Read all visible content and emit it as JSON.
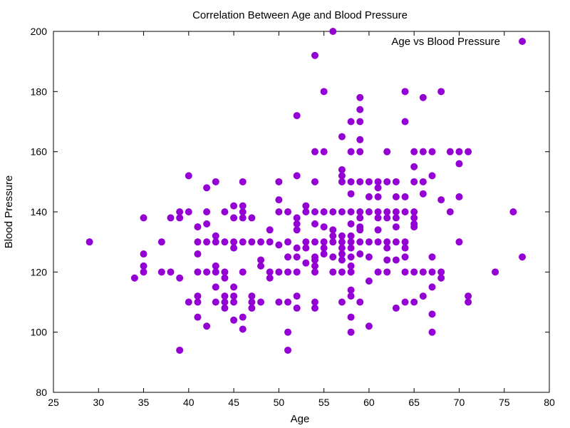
{
  "chart_data": {
    "type": "scatter",
    "title": "Correlation Between Age and Blood Pressure",
    "xlabel": "Age",
    "ylabel": "Blood Pressure",
    "xlim": [
      25,
      80
    ],
    "ylim": [
      80,
      200
    ],
    "xticks": [
      25,
      30,
      35,
      40,
      45,
      50,
      55,
      60,
      65,
      70,
      75,
      80
    ],
    "yticks": [
      80,
      100,
      120,
      140,
      160,
      180,
      200
    ],
    "grid": false,
    "legend_position": "top-right",
    "series": [
      {
        "name": "Age vs Blood Pressure",
        "color": "#9400d3",
        "points": [
          [
            29,
            130
          ],
          [
            34,
            118
          ],
          [
            35,
            138
          ],
          [
            35,
            126
          ],
          [
            35,
            122
          ],
          [
            35,
            120
          ],
          [
            37,
            130
          ],
          [
            37,
            120
          ],
          [
            38,
            138
          ],
          [
            38,
            120
          ],
          [
            39,
            140
          ],
          [
            39,
            138
          ],
          [
            39,
            118
          ],
          [
            39,
            94
          ],
          [
            40,
            152
          ],
          [
            40,
            140
          ],
          [
            40,
            110
          ],
          [
            41,
            135
          ],
          [
            41,
            130
          ],
          [
            41,
            126
          ],
          [
            41,
            120
          ],
          [
            41,
            112
          ],
          [
            41,
            110
          ],
          [
            41,
            105
          ],
          [
            42,
            148
          ],
          [
            42,
            140
          ],
          [
            42,
            136
          ],
          [
            42,
            130
          ],
          [
            42,
            120
          ],
          [
            42,
            102
          ],
          [
            43,
            150
          ],
          [
            43,
            132
          ],
          [
            43,
            130
          ],
          [
            43,
            122
          ],
          [
            43,
            120
          ],
          [
            43,
            115
          ],
          [
            43,
            110
          ],
          [
            44,
            140
          ],
          [
            44,
            130
          ],
          [
            44,
            120
          ],
          [
            44,
            118
          ],
          [
            44,
            112
          ],
          [
            44,
            110
          ],
          [
            44,
            108
          ],
          [
            45,
            142
          ],
          [
            45,
            138
          ],
          [
            45,
            130
          ],
          [
            45,
            128
          ],
          [
            45,
            115
          ],
          [
            45,
            112
          ],
          [
            45,
            110
          ],
          [
            45,
            104
          ],
          [
            46,
            150
          ],
          [
            46,
            142
          ],
          [
            46,
            140
          ],
          [
            46,
            138
          ],
          [
            46,
            130
          ],
          [
            46,
            120
          ],
          [
            46,
            105
          ],
          [
            46,
            101
          ],
          [
            47,
            138
          ],
          [
            47,
            130
          ],
          [
            47,
            112
          ],
          [
            47,
            110
          ],
          [
            47,
            108
          ],
          [
            48,
            130
          ],
          [
            48,
            124
          ],
          [
            48,
            122
          ],
          [
            48,
            110
          ],
          [
            49,
            134
          ],
          [
            49,
            130
          ],
          [
            49,
            120
          ],
          [
            49,
            118
          ],
          [
            50,
            150
          ],
          [
            50,
            144
          ],
          [
            50,
            140
          ],
          [
            50,
            129
          ],
          [
            50,
            120
          ],
          [
            50,
            110
          ],
          [
            51,
            140
          ],
          [
            51,
            130
          ],
          [
            51,
            125
          ],
          [
            51,
            120
          ],
          [
            51,
            110
          ],
          [
            51,
            100
          ],
          [
            51,
            94
          ],
          [
            52,
            172
          ],
          [
            52,
            152
          ],
          [
            52,
            138
          ],
          [
            52,
            136
          ],
          [
            52,
            134
          ],
          [
            52,
            128
          ],
          [
            52,
            125
          ],
          [
            52,
            120
          ],
          [
            52,
            112
          ],
          [
            52,
            108
          ],
          [
            53,
            142
          ],
          [
            53,
            140
          ],
          [
            53,
            130
          ],
          [
            53,
            128
          ],
          [
            53,
            123
          ],
          [
            54,
            192
          ],
          [
            54,
            160
          ],
          [
            54,
            150
          ],
          [
            54,
            140
          ],
          [
            54,
            136
          ],
          [
            54,
            130
          ],
          [
            54,
            125
          ],
          [
            54,
            124
          ],
          [
            54,
            122
          ],
          [
            54,
            120
          ],
          [
            54,
            110
          ],
          [
            54,
            108
          ],
          [
            55,
            180
          ],
          [
            55,
            160
          ],
          [
            55,
            140
          ],
          [
            55,
            135
          ],
          [
            55,
            130
          ],
          [
            55,
            128
          ],
          [
            55,
            126
          ],
          [
            56,
            200
          ],
          [
            56,
            140
          ],
          [
            56,
            134
          ],
          [
            56,
            132
          ],
          [
            56,
            130
          ],
          [
            56,
            125
          ],
          [
            56,
            120
          ],
          [
            57,
            165
          ],
          [
            57,
            154
          ],
          [
            57,
            152
          ],
          [
            57,
            150
          ],
          [
            57,
            140
          ],
          [
            57,
            132
          ],
          [
            57,
            130
          ],
          [
            57,
            128
          ],
          [
            57,
            126
          ],
          [
            57,
            124
          ],
          [
            57,
            120
          ],
          [
            57,
            110
          ],
          [
            58,
            170
          ],
          [
            58,
            160
          ],
          [
            58,
            150
          ],
          [
            58,
            146
          ],
          [
            58,
            140
          ],
          [
            58,
            136
          ],
          [
            58,
            132
          ],
          [
            58,
            130
          ],
          [
            58,
            128
          ],
          [
            58,
            125
          ],
          [
            58,
            122
          ],
          [
            58,
            120
          ],
          [
            58,
            114
          ],
          [
            58,
            112
          ],
          [
            58,
            105
          ],
          [
            58,
            100
          ],
          [
            59,
            178
          ],
          [
            59,
            174
          ],
          [
            59,
            170
          ],
          [
            59,
            164
          ],
          [
            59,
            160
          ],
          [
            59,
            150
          ],
          [
            59,
            140
          ],
          [
            59,
            138
          ],
          [
            59,
            135
          ],
          [
            59,
            134
          ],
          [
            59,
            130
          ],
          [
            59,
            126
          ],
          [
            59,
            110
          ],
          [
            60,
            150
          ],
          [
            60,
            145
          ],
          [
            60,
            140
          ],
          [
            60,
            130
          ],
          [
            60,
            125
          ],
          [
            60,
            117
          ],
          [
            60,
            102
          ],
          [
            61,
            150
          ],
          [
            61,
            148
          ],
          [
            61,
            145
          ],
          [
            61,
            140
          ],
          [
            61,
            138
          ],
          [
            61,
            134
          ],
          [
            61,
            130
          ],
          [
            61,
            120
          ],
          [
            62,
            160
          ],
          [
            62,
            150
          ],
          [
            62,
            140
          ],
          [
            62,
            138
          ],
          [
            62,
            130
          ],
          [
            62,
            128
          ],
          [
            62,
            124
          ],
          [
            62,
            120
          ],
          [
            63,
            150
          ],
          [
            63,
            145
          ],
          [
            63,
            140
          ],
          [
            63,
            138
          ],
          [
            63,
            135
          ],
          [
            63,
            130
          ],
          [
            63,
            124
          ],
          [
            63,
            108
          ],
          [
            64,
            180
          ],
          [
            64,
            170
          ],
          [
            64,
            145
          ],
          [
            64,
            140
          ],
          [
            64,
            130
          ],
          [
            64,
            128
          ],
          [
            64,
            125
          ],
          [
            64,
            120
          ],
          [
            64,
            110
          ],
          [
            65,
            160
          ],
          [
            65,
            155
          ],
          [
            65,
            150
          ],
          [
            65,
            140
          ],
          [
            65,
            138
          ],
          [
            65,
            136
          ],
          [
            65,
            135
          ],
          [
            65,
            120
          ],
          [
            65,
            110
          ],
          [
            66,
            178
          ],
          [
            66,
            160
          ],
          [
            66,
            150
          ],
          [
            66,
            146
          ],
          [
            66,
            120
          ],
          [
            66,
            112
          ],
          [
            67,
            160
          ],
          [
            67,
            152
          ],
          [
            67,
            125
          ],
          [
            67,
            120
          ],
          [
            67,
            115
          ],
          [
            67,
            106
          ],
          [
            67,
            100
          ],
          [
            68,
            180
          ],
          [
            68,
            144
          ],
          [
            68,
            120
          ],
          [
            68,
            118
          ],
          [
            69,
            160
          ],
          [
            69,
            140
          ],
          [
            70,
            160
          ],
          [
            70,
            156
          ],
          [
            70,
            145
          ],
          [
            70,
            130
          ],
          [
            71,
            160
          ],
          [
            71,
            112
          ],
          [
            71,
            110
          ],
          [
            74,
            120
          ],
          [
            76,
            140
          ],
          [
            77,
            125
          ]
        ]
      }
    ]
  }
}
